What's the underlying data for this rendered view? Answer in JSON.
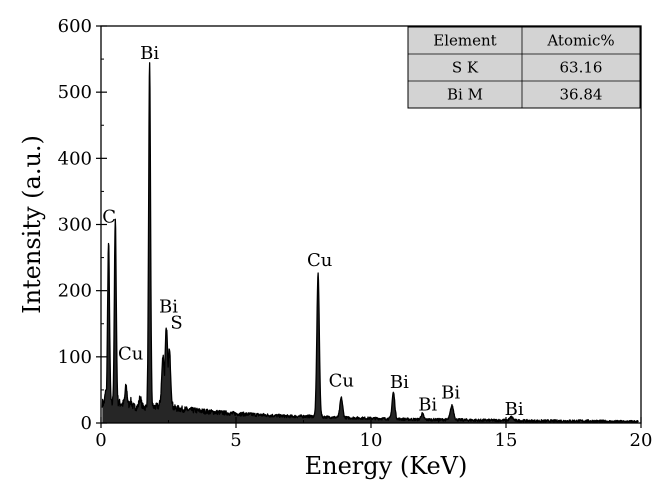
{
  "chart_data": {
    "type": "line",
    "title": "",
    "xlabel": "Energy (KeV)",
    "ylabel": "Intensity (a.u.)",
    "xlim": [
      0,
      20
    ],
    "ylim": [
      0,
      600
    ],
    "xticks": [
      0,
      5,
      10,
      15,
      20
    ],
    "yticks": [
      0,
      100,
      200,
      300,
      400,
      500,
      600
    ],
    "grid": false,
    "legend": "none",
    "line_color": "#000000",
    "baseline": [
      [
        0.05,
        30
      ],
      [
        0.4,
        28
      ],
      [
        0.7,
        30
      ],
      [
        1.0,
        26
      ],
      [
        1.3,
        24
      ],
      [
        1.6,
        24
      ],
      [
        2.0,
        24
      ],
      [
        2.2,
        26
      ],
      [
        2.8,
        22
      ],
      [
        3.2,
        20
      ],
      [
        4.0,
        17
      ],
      [
        5.0,
        14
      ],
      [
        6.0,
        12
      ],
      [
        7.0,
        10
      ],
      [
        7.8,
        10
      ],
      [
        8.3,
        9
      ],
      [
        9.0,
        8
      ],
      [
        10.0,
        7
      ],
      [
        11.0,
        6
      ],
      [
        12.0,
        5
      ],
      [
        13.0,
        5
      ],
      [
        14.0,
        4
      ],
      [
        15.0,
        4
      ],
      [
        16.0,
        3
      ],
      [
        17.0,
        3
      ],
      [
        18.0,
        3
      ],
      [
        19.0,
        2
      ],
      [
        19.9,
        2
      ]
    ],
    "peaks": [
      {
        "x": 0.18,
        "y": 48,
        "w": 0.03
      },
      {
        "x": 0.28,
        "y": 272,
        "w": 0.035
      },
      {
        "x": 0.53,
        "y": 305,
        "w": 0.035
      },
      {
        "x": 0.93,
        "y": 55,
        "w": 0.04
      },
      {
        "x": 1.1,
        "y": 33,
        "w": 0.04
      },
      {
        "x": 1.45,
        "y": 38,
        "w": 0.04
      },
      {
        "x": 1.8,
        "y": 540,
        "w": 0.035
      },
      {
        "x": 2.3,
        "y": 100,
        "w": 0.05
      },
      {
        "x": 2.42,
        "y": 145,
        "w": 0.05
      },
      {
        "x": 2.53,
        "y": 110,
        "w": 0.05
      },
      {
        "x": 8.04,
        "y": 226,
        "w": 0.045
      },
      {
        "x": 8.9,
        "y": 38,
        "w": 0.05
      },
      {
        "x": 10.83,
        "y": 46,
        "w": 0.05
      },
      {
        "x": 11.9,
        "y": 14,
        "w": 0.05
      },
      {
        "x": 13.0,
        "y": 26,
        "w": 0.06
      },
      {
        "x": 15.2,
        "y": 9,
        "w": 0.06
      }
    ],
    "annotations": [
      {
        "text": "Bi",
        "x": 1.8,
        "y": 550
      },
      {
        "text": "C",
        "x": 0.3,
        "y": 303
      },
      {
        "text": "Bi",
        "x": 2.5,
        "y": 167
      },
      {
        "text": "S",
        "x": 2.8,
        "y": 143
      },
      {
        "text": "Cu",
        "x": 1.1,
        "y": 96
      },
      {
        "text": "Cu",
        "x": 8.1,
        "y": 237
      },
      {
        "text": "Cu",
        "x": 8.9,
        "y": 55
      },
      {
        "text": "Bi",
        "x": 11.05,
        "y": 53
      },
      {
        "text": "Bi",
        "x": 12.1,
        "y": 19
      },
      {
        "text": "Bi",
        "x": 12.95,
        "y": 37
      },
      {
        "text": "Bi",
        "x": 15.3,
        "y": 12
      }
    ],
    "table": {
      "headers": [
        "Element",
        "Atomic%"
      ],
      "rows": [
        [
          "S K",
          "63.16"
        ],
        [
          "Bi M",
          "36.84"
        ]
      ],
      "background": "#d3d3d3"
    }
  }
}
